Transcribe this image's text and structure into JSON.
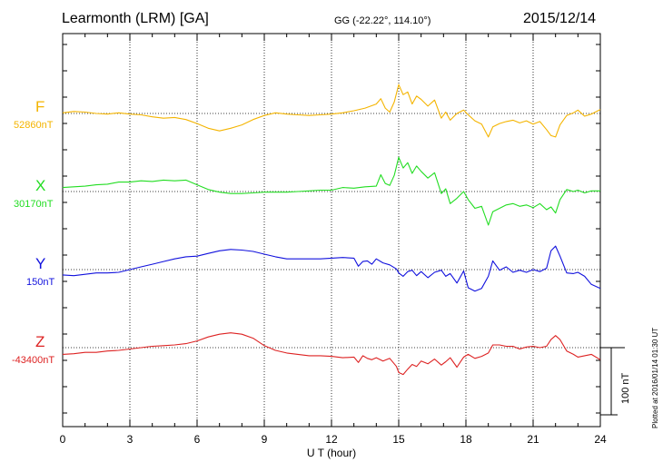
{
  "header": {
    "station": "Learmonth (LRM)  [GA]",
    "coords": "GG (-22.22°, 114.10°)",
    "date": "2015/12/14"
  },
  "note": "Plotted at 2016/01/14 01:30 UT",
  "scale_label": "100 nT",
  "chart_data": {
    "type": "line",
    "xlabel": "U T (hour)",
    "xlim": [
      0,
      24
    ],
    "xticks": [
      "0",
      "3",
      "6",
      "9",
      "12",
      "15",
      "18",
      "21",
      "24"
    ],
    "grid": true,
    "scale_bar_nT": 100,
    "series": [
      {
        "name": "F",
        "baseline_label": "52860nT",
        "color": "#f4b400",
        "points": [
          [
            0,
            1
          ],
          [
            0.5,
            3
          ],
          [
            1,
            2
          ],
          [
            1.5,
            0
          ],
          [
            2,
            -1
          ],
          [
            2.5,
            1
          ],
          [
            3,
            -1
          ],
          [
            3.5,
            -2
          ],
          [
            4,
            -5
          ],
          [
            4.5,
            -7
          ],
          [
            5,
            -6
          ],
          [
            5.5,
            -9
          ],
          [
            6,
            -15
          ],
          [
            6.5,
            -22
          ],
          [
            7,
            -26
          ],
          [
            7.5,
            -22
          ],
          [
            8,
            -17
          ],
          [
            8.5,
            -9
          ],
          [
            9,
            -3
          ],
          [
            9.5,
            1
          ],
          [
            10,
            -1
          ],
          [
            10.5,
            -2
          ],
          [
            11,
            -3
          ],
          [
            11.5,
            -2
          ],
          [
            12,
            -1
          ],
          [
            12.5,
            1
          ],
          [
            13,
            4
          ],
          [
            13.5,
            8
          ],
          [
            14,
            14
          ],
          [
            14.2,
            22
          ],
          [
            14.4,
            8
          ],
          [
            14.6,
            2
          ],
          [
            14.8,
            17
          ],
          [
            15,
            43
          ],
          [
            15.2,
            28
          ],
          [
            15.4,
            32
          ],
          [
            15.6,
            14
          ],
          [
            15.8,
            26
          ],
          [
            16,
            21
          ],
          [
            16.3,
            11
          ],
          [
            16.6,
            20
          ],
          [
            16.9,
            -7
          ],
          [
            17.1,
            2
          ],
          [
            17.3,
            -10
          ],
          [
            17.6,
            0
          ],
          [
            17.9,
            5
          ],
          [
            18.1,
            -2
          ],
          [
            18.4,
            -11
          ],
          [
            18.7,
            -16
          ],
          [
            19,
            -35
          ],
          [
            19.2,
            -20
          ],
          [
            19.5,
            -15
          ],
          [
            19.8,
            -12
          ],
          [
            20.1,
            -10
          ],
          [
            20.4,
            -14
          ],
          [
            20.7,
            -11
          ],
          [
            21,
            -16
          ],
          [
            21.3,
            -12
          ],
          [
            21.6,
            -24
          ],
          [
            21.8,
            -33
          ],
          [
            22,
            -35
          ],
          [
            22.2,
            -17
          ],
          [
            22.5,
            -3
          ],
          [
            22.8,
            1
          ],
          [
            23,
            5
          ],
          [
            23.3,
            -4
          ],
          [
            23.6,
            -1
          ],
          [
            24,
            6
          ]
        ]
      },
      {
        "name": "X",
        "baseline_label": "30170nT",
        "color": "#22dd22",
        "points": [
          [
            0,
            6
          ],
          [
            0.5,
            7
          ],
          [
            1,
            8
          ],
          [
            1.5,
            10
          ],
          [
            2,
            11
          ],
          [
            2.5,
            14
          ],
          [
            3,
            14
          ],
          [
            3.5,
            16
          ],
          [
            4,
            15
          ],
          [
            4.5,
            17
          ],
          [
            5,
            16
          ],
          [
            5.5,
            17
          ],
          [
            6,
            10
          ],
          [
            6.5,
            3
          ],
          [
            7,
            -1
          ],
          [
            7.5,
            -3
          ],
          [
            8,
            -3
          ],
          [
            8.5,
            -2
          ],
          [
            9,
            -1
          ],
          [
            9.5,
            -1
          ],
          [
            10,
            -1
          ],
          [
            10.5,
            0
          ],
          [
            11,
            1
          ],
          [
            11.5,
            2
          ],
          [
            12,
            2
          ],
          [
            12.5,
            6
          ],
          [
            13,
            5
          ],
          [
            13.5,
            7
          ],
          [
            14,
            8
          ],
          [
            14.2,
            25
          ],
          [
            14.4,
            12
          ],
          [
            14.6,
            9
          ],
          [
            14.8,
            24
          ],
          [
            15,
            51
          ],
          [
            15.2,
            35
          ],
          [
            15.4,
            43
          ],
          [
            15.6,
            27
          ],
          [
            15.8,
            38
          ],
          [
            16,
            30
          ],
          [
            16.3,
            20
          ],
          [
            16.6,
            28
          ],
          [
            16.9,
            -3
          ],
          [
            17.1,
            4
          ],
          [
            17.3,
            -18
          ],
          [
            17.6,
            -10
          ],
          [
            17.9,
            0
          ],
          [
            18.1,
            -12
          ],
          [
            18.4,
            -25
          ],
          [
            18.7,
            -22
          ],
          [
            19,
            -50
          ],
          [
            19.2,
            -30
          ],
          [
            19.5,
            -25
          ],
          [
            19.8,
            -20
          ],
          [
            20.1,
            -18
          ],
          [
            20.4,
            -22
          ],
          [
            20.7,
            -20
          ],
          [
            21,
            -24
          ],
          [
            21.3,
            -18
          ],
          [
            21.6,
            -27
          ],
          [
            21.8,
            -23
          ],
          [
            22,
            -32
          ],
          [
            22.2,
            -12
          ],
          [
            22.5,
            3
          ],
          [
            22.8,
            0
          ],
          [
            23,
            2
          ],
          [
            23.3,
            -2
          ],
          [
            23.6,
            1
          ],
          [
            24,
            1
          ]
        ]
      },
      {
        "name": "Y",
        "baseline_label": "150nT",
        "color": "#1111dd",
        "points": [
          [
            0,
            -8
          ],
          [
            0.5,
            -9
          ],
          [
            1,
            -7
          ],
          [
            1.5,
            -5
          ],
          [
            2,
            -5
          ],
          [
            2.5,
            -4
          ],
          [
            3,
            0
          ],
          [
            3.5,
            4
          ],
          [
            4,
            8
          ],
          [
            4.5,
            12
          ],
          [
            5,
            16
          ],
          [
            5.5,
            19
          ],
          [
            6,
            20
          ],
          [
            6.5,
            24
          ],
          [
            7,
            28
          ],
          [
            7.5,
            30
          ],
          [
            8,
            29
          ],
          [
            8.5,
            27
          ],
          [
            9,
            23
          ],
          [
            9.5,
            19
          ],
          [
            10,
            16
          ],
          [
            10.5,
            16
          ],
          [
            11,
            16
          ],
          [
            11.5,
            16
          ],
          [
            12,
            17
          ],
          [
            12.5,
            18
          ],
          [
            13,
            17
          ],
          [
            13.2,
            5
          ],
          [
            13.4,
            12
          ],
          [
            13.6,
            13
          ],
          [
            13.8,
            8
          ],
          [
            14,
            16
          ],
          [
            14.3,
            10
          ],
          [
            14.6,
            7
          ],
          [
            14.9,
            1
          ],
          [
            15,
            -5
          ],
          [
            15.2,
            -10
          ],
          [
            15.4,
            -3
          ],
          [
            15.6,
            -1
          ],
          [
            15.8,
            -9
          ],
          [
            16,
            -3
          ],
          [
            16.3,
            -12
          ],
          [
            16.6,
            -4
          ],
          [
            16.9,
            -1
          ],
          [
            17.1,
            -10
          ],
          [
            17.3,
            -6
          ],
          [
            17.6,
            -20
          ],
          [
            17.9,
            -2
          ],
          [
            18.1,
            -27
          ],
          [
            18.4,
            -32
          ],
          [
            18.7,
            -28
          ],
          [
            19,
            -10
          ],
          [
            19.2,
            13
          ],
          [
            19.5,
            -1
          ],
          [
            19.8,
            4
          ],
          [
            20.1,
            -4
          ],
          [
            20.4,
            -1
          ],
          [
            20.7,
            -4
          ],
          [
            21,
            0
          ],
          [
            21.3,
            -3
          ],
          [
            21.6,
            2
          ],
          [
            21.8,
            28
          ],
          [
            22,
            35
          ],
          [
            22.2,
            20
          ],
          [
            22.5,
            -5
          ],
          [
            22.8,
            -6
          ],
          [
            23,
            -4
          ],
          [
            23.3,
            -10
          ],
          [
            23.6,
            -22
          ],
          [
            24,
            -28
          ]
        ]
      },
      {
        "name": "Z",
        "baseline_label": "-43400nT",
        "color": "#dd2222",
        "points": [
          [
            0,
            -10
          ],
          [
            0.5,
            -9
          ],
          [
            1,
            -7
          ],
          [
            1.5,
            -7
          ],
          [
            2,
            -5
          ],
          [
            2.5,
            -4
          ],
          [
            3,
            -2
          ],
          [
            3.5,
            0
          ],
          [
            4,
            2
          ],
          [
            4.5,
            3
          ],
          [
            5,
            4
          ],
          [
            5.5,
            6
          ],
          [
            6,
            10
          ],
          [
            6.5,
            16
          ],
          [
            7,
            20
          ],
          [
            7.5,
            22
          ],
          [
            8,
            20
          ],
          [
            8.5,
            14
          ],
          [
            9,
            3
          ],
          [
            9.5,
            -4
          ],
          [
            10,
            -8
          ],
          [
            10.5,
            -10
          ],
          [
            11,
            -12
          ],
          [
            11.5,
            -12
          ],
          [
            12,
            -13
          ],
          [
            12.5,
            -15
          ],
          [
            13,
            -14
          ],
          [
            13.2,
            -22
          ],
          [
            13.4,
            -12
          ],
          [
            13.6,
            -16
          ],
          [
            13.8,
            -18
          ],
          [
            14,
            -15
          ],
          [
            14.3,
            -20
          ],
          [
            14.6,
            -16
          ],
          [
            14.9,
            -28
          ],
          [
            15,
            -37
          ],
          [
            15.2,
            -40
          ],
          [
            15.4,
            -32
          ],
          [
            15.6,
            -25
          ],
          [
            15.8,
            -28
          ],
          [
            16,
            -20
          ],
          [
            16.3,
            -24
          ],
          [
            16.6,
            -17
          ],
          [
            16.9,
            -26
          ],
          [
            17.1,
            -21
          ],
          [
            17.3,
            -15
          ],
          [
            17.6,
            -29
          ],
          [
            17.9,
            -14
          ],
          [
            18.1,
            -10
          ],
          [
            18.4,
            -16
          ],
          [
            18.7,
            -13
          ],
          [
            19,
            -8
          ],
          [
            19.2,
            4
          ],
          [
            19.5,
            4
          ],
          [
            19.8,
            2
          ],
          [
            20.1,
            2
          ],
          [
            20.4,
            -2
          ],
          [
            20.7,
            1
          ],
          [
            21,
            2
          ],
          [
            21.3,
            0
          ],
          [
            21.6,
            2
          ],
          [
            21.8,
            12
          ],
          [
            22,
            18
          ],
          [
            22.2,
            12
          ],
          [
            22.5,
            -5
          ],
          [
            22.8,
            -10
          ],
          [
            23,
            -14
          ],
          [
            23.3,
            -12
          ],
          [
            23.6,
            -10
          ],
          [
            24,
            -18
          ]
        ]
      }
    ]
  }
}
